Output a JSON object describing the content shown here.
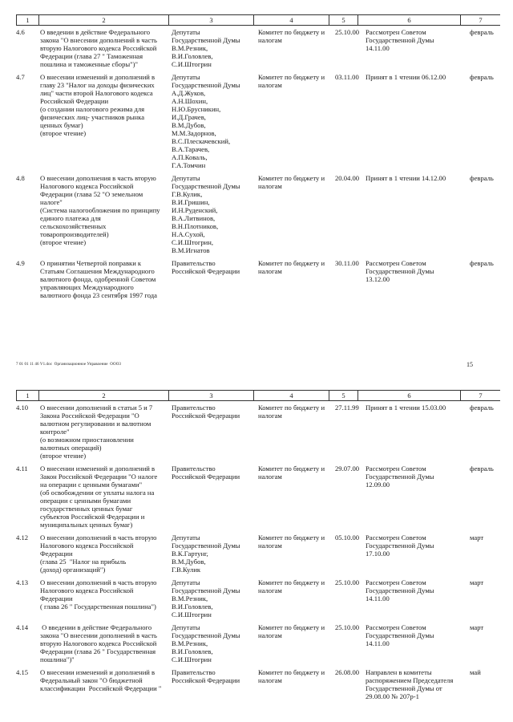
{
  "column_headers": [
    "1",
    "2",
    "3",
    "4",
    "5",
    "6",
    "7"
  ],
  "pages": [
    {
      "rows": [
        {
          "num": "4.6",
          "title": "О введении в действие Федерального\nзакона \"О внесении дополнений в часть\nвторую Налогового кодекса Российской\nФедерации (глава 27 \" Таможенная\nпошлина и таможенные сборы\")\"",
          "initiator": "Депутаты\nГосударственной Думы\nВ.М.Резник,\nВ.И.Головлев,\nС.И.Штогрин",
          "committee": "Комитет по бюджету и\nналогам",
          "date": "25.10.00",
          "status": "Рассмотрен Советом\nГосударственной Думы\n14.11.00",
          "month": "февраль"
        },
        {
          "num": "4.7",
          "title": "О внесении изменений и дополнений в\nглаву 23 \"Налог на доходы физических\nлиц\" части второй Налогового кодекса\nРоссийской Федерации\n(о создании налогового режима для\nфизических лиц- участников рынка\nценных бумаг)\n(второе чтение)",
          "initiator": "Депутаты\nГосударственной Думы\nА.Д.Жуков,\nА.Н.Шохин,\nН.Ю.Брусникин,\nИ.Д.Грачев,\nВ.М.Дубов,\nМ.М.Задорнов,\nВ.С.Плескачевский,\nВ.А.Тарачев,\nА.П.Коваль,\nГ.А.Томчин",
          "committee": "Комитет по бюджету и\nналогам",
          "date": "03.11.00",
          "status": "Принят в 1 чтении 06.12.00",
          "month": "февраль"
        },
        {
          "num": "4.8",
          "title": "О внесении дополнения в часть вторую\nНалогового кодекса Российской\nФедерации (глава 52 \"О земельном\nналоге\"\n(Система налогообложения по принципу\nединого платежа для\nсельскохозяйственных\nтоваропроизводителей)\n(второе чтение)",
          "initiator": "Депутаты\nГосударственной Думы\nГ.В.Кулик,\nВ.И.Гришин,\nИ.Н.Руденский,\nВ.А.Литвинов,\nВ.Н.Плотников,\nН.А.Сухой,\nС.И.Штогрин,\nВ.М.Игнатов",
          "committee": "Комитет по бюджету и\nналогам",
          "date": "20.04.00",
          "status": "Принят в 1 чтении 14.12.00",
          "month": "февраль"
        },
        {
          "num": "4.9",
          "title": "О принятии Четвертой поправки к\nСтатьям Соглашения Международного\nвалютного фонда, одобренной Советом\nуправляющих Международного\nвалютного фонда 23 сентября 1997 года",
          "initiator": "Правительство\nРоссийской Федерации",
          "committee": "Комитет по бюджету и\nналогам",
          "date": "30.11.00",
          "status": "Рассмотрен Советом\nГосударственной Думы\n13.12.00",
          "month": "февраль"
        }
      ]
    },
    {
      "rows": [
        {
          "num": "4.10",
          "title": "О внесении дополнений в статьи 5 и 7\nЗакона Российской Федерации \"О\nвалютном регулировании и валютном\nконтроле\"\n(о возможном приостановлении\nвалютных операций)\n(второе чтение)",
          "initiator": "Правительство\nРоссийской Федерации",
          "committee": "Комитет по бюджету и\nналогам",
          "date": "27.11.99",
          "status": "Принят в 1 чтении 15.03.00",
          "month": "февраль"
        },
        {
          "num": "4.11",
          "title": "О внесении изменений и дополнений в\nЗакон Российской Федерации \"О налоге\nна операции с ценными бумагами\"\n(об освобождении от уплаты налога на\nоперации с ценными бумагами\nгосударственных ценных бумаг\nсубъектов Российской Федерации и\nмуниципальных ценных бумаг)",
          "initiator": "Правительство\nРоссийской Федерации",
          "committee": "Комитет по бюджету и\nналогам",
          "date": "29.07.00",
          "status": "Рассмотрен Советом\nГосударственной Думы\n12.09.00",
          "month": "февраль"
        },
        {
          "num": "4.12",
          "title": "О внесении дополнений в часть вторую\nНалогового кодекса Российской\nФедерации\n(глава 25  \"Налог на прибыль\n(доход) организаций\")",
          "initiator": "Депутаты\nГосударственной Думы\nВ.К.Гартунг,\nВ.М.Дубов,\nГ.В.Кулик",
          "committee": "Комитет по бюджету и\nналогам",
          "date": "05.10.00",
          "status": "Рассмотрен Советом\nГосударственной Думы\n17.10.00",
          "month": "март"
        },
        {
          "num": "4.13",
          "title": "О внесении дополнений в часть вторую\nНалогового кодекса Российской\nФедерации\n( глава 26 \" Государственная пошлина\")",
          "initiator": "Депутаты\nГосударственной Думы\nВ.М.Резник,\nВ.И.Головлев,\nС.И.Штогрин",
          "committee": "Комитет по бюджету и\nналогам",
          "date": "25.10.00",
          "status": "Рассмотрен Советом\nГосударственной Думы\n14.11.00",
          "month": "март"
        },
        {
          "num": "4.14",
          "title": " О введении в действие Федерального\nзакона \"О внесении дополнений в часть\nвторую Налогового кодекса Российской\nФедерации (глава 26 \" Государственная\nпошлина\")\"",
          "initiator": "Депутаты\nГосударственной Думы\nВ.М.Резник,\nВ.И.Головлев,\nС.И.Штогрин",
          "committee": "Комитет по бюджету и\nналогам",
          "date": "25.10.00",
          "status": "Рассмотрен Советом\nГосударственной Думы\n14.11.00",
          "month": "март"
        },
        {
          "num": "4.15",
          "title": "О внесении изменений и дополнений в\nФедеральный закон \"О бюджетной\nклассификации  Российской Федерации \"",
          "initiator": "Правительство\nРоссийской Федерации",
          "committee": "Комитет по бюджету и\nналогам",
          "date": "26.08.00",
          "status": "Направлен в комитеты\nраспоряжением Председателя\nГосударственной Думы от\n29.08.00 № 207р-1",
          "month": "май"
        }
      ]
    }
  ],
  "footer": {
    "file_info": "7 01 01 11 46 V1.doc  Организационное Управление  ООО3",
    "page_number": "15"
  }
}
